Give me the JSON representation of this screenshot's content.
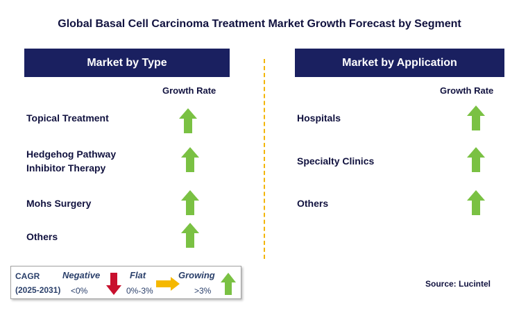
{
  "title": "Global Basal Cell Carcinoma Treatment Market Growth Forecast by Segment",
  "left_panel": {
    "header": "Market by Type",
    "column_label": "Growth Rate",
    "items": [
      {
        "line1": "Topical Treatment",
        "line2": "",
        "trend": "growing"
      },
      {
        "line1": "Hedgehog Pathway",
        "line2": "Inhibitor Therapy",
        "trend": "growing"
      },
      {
        "line1": "Mohs Surgery",
        "line2": "",
        "trend": "growing"
      },
      {
        "line1": "Others",
        "line2": "",
        "trend": "growing"
      }
    ]
  },
  "right_panel": {
    "header": "Market by Application",
    "column_label": "Growth Rate",
    "items": [
      {
        "line1": "Hospitals",
        "trend": "growing"
      },
      {
        "line1": "Specialty Clinics",
        "trend": "growing"
      },
      {
        "line1": "Others",
        "trend": "growing"
      }
    ]
  },
  "legend": {
    "cagr_label": "CAGR",
    "period": "(2025-2031)",
    "negative": {
      "label": "Negative",
      "range": "<0%",
      "icon": "down-arrow-icon"
    },
    "flat": {
      "label": "Flat",
      "range": "0%-3%",
      "icon": "right-arrow-icon"
    },
    "growing": {
      "label": "Growing",
      "range": ">3%",
      "icon": "up-arrow-icon"
    }
  },
  "colors": {
    "header_bg": "#1a2060",
    "growing": "#7ac143",
    "negative": "#c8102e",
    "flat": "#f5b800",
    "divider": "#f2b400"
  },
  "source": "Source: Lucintel"
}
